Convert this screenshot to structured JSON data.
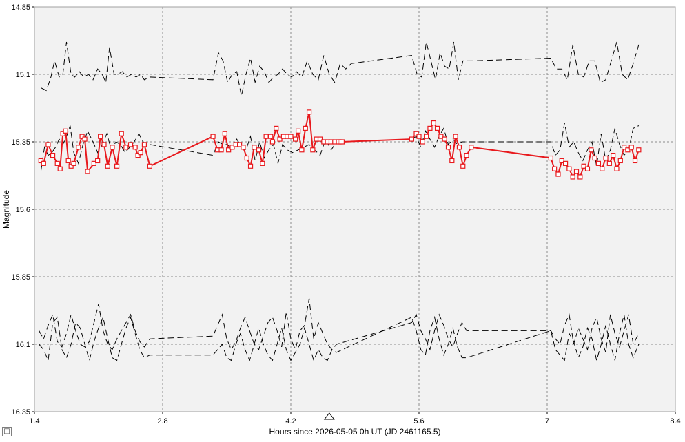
{
  "chart_data": {
    "type": "line",
    "title": "",
    "xlabel": "Hours since 2026-05-05 0h UT (JD 2461165.5)",
    "ylabel": "Magnitude",
    "xlim": [
      1.4,
      8.4
    ],
    "ylim": [
      14.85,
      16.35
    ],
    "y_inverted": true,
    "grid": true,
    "x_ticks": [
      "1.4",
      "2.8",
      "4.2",
      "5.6",
      "7",
      "8.4"
    ],
    "y_ticks": [
      "14.85",
      "15.1",
      "15.35",
      "15.6",
      "15.85",
      "16.1",
      "16.35"
    ],
    "marker_x": 4.62,
    "colors": {
      "target": "#e8191d",
      "comparison": "#000000",
      "plot_bg": "#f2f2f2",
      "grid": "#8c8c8c"
    },
    "series": [
      {
        "role": "target",
        "x": [
          1.47,
          1.5,
          1.55,
          1.6,
          1.65,
          1.68,
          1.71,
          1.74,
          1.77,
          1.8,
          1.83,
          1.88,
          1.92,
          1.95,
          1.98,
          2.05,
          2.09,
          2.12,
          2.16,
          2.2,
          2.25,
          2.3,
          2.35,
          2.4,
          2.45,
          2.5,
          2.53,
          2.56,
          2.6,
          2.66,
          3.35,
          3.4,
          3.44,
          3.48,
          3.52,
          3.56,
          3.6,
          3.64,
          3.68,
          3.72,
          3.76,
          3.8,
          3.85,
          3.89,
          3.93,
          3.98,
          4.0,
          4.04,
          4.08,
          4.12,
          4.16,
          4.2,
          4.25,
          4.28,
          4.32,
          4.36,
          4.4,
          4.44,
          4.48,
          4.52,
          4.56,
          4.6,
          4.64,
          4.68,
          4.72,
          4.74,
          4.76,
          5.52,
          5.57,
          5.6,
          5.64,
          5.68,
          5.72,
          5.76,
          5.8,
          5.84,
          5.88,
          5.92,
          5.96,
          6.0,
          6.04,
          6.08,
          6.12,
          6.17,
          7.04,
          7.08,
          7.12,
          7.16,
          7.2,
          7.24,
          7.28,
          7.32,
          7.36,
          7.4,
          7.44,
          7.48,
          7.52,
          7.56,
          7.6,
          7.64,
          7.68,
          7.72,
          7.76,
          7.8,
          7.84,
          7.88,
          7.92,
          7.96,
          8.0
        ],
        "y": [
          15.42,
          15.43,
          15.36,
          15.4,
          15.43,
          15.45,
          15.32,
          15.31,
          15.42,
          15.44,
          15.43,
          15.37,
          15.33,
          15.34,
          15.46,
          15.43,
          15.42,
          15.33,
          15.36,
          15.44,
          15.37,
          15.44,
          15.32,
          15.37,
          15.36,
          15.37,
          15.4,
          15.39,
          15.36,
          15.44,
          15.33,
          15.38,
          15.38,
          15.32,
          15.38,
          15.37,
          15.36,
          15.36,
          15.37,
          15.41,
          15.44,
          15.37,
          15.38,
          15.43,
          15.33,
          15.33,
          15.35,
          15.3,
          15.34,
          15.33,
          15.33,
          15.33,
          15.34,
          15.31,
          15.38,
          15.3,
          15.24,
          15.38,
          15.34,
          15.34,
          15.35,
          15.35,
          15.35,
          15.35,
          15.35,
          15.35,
          15.35,
          15.34,
          15.32,
          15.33,
          15.35,
          15.33,
          15.3,
          15.28,
          15.3,
          15.33,
          15.34,
          15.37,
          15.42,
          15.33,
          15.37,
          15.44,
          15.4,
          15.37,
          15.41,
          15.45,
          15.47,
          15.42,
          15.43,
          15.45,
          15.48,
          15.46,
          15.48,
          15.44,
          15.45,
          15.38,
          15.41,
          15.43,
          15.45,
          15.41,
          15.43,
          15.4,
          15.45,
          15.42,
          15.37,
          15.38,
          15.37,
          15.42,
          15.38
        ]
      },
      {
        "role": "comparison-1",
        "x": [
          1.47,
          1.53,
          1.58,
          1.62,
          1.67,
          1.71,
          1.75,
          1.8,
          1.84,
          1.89,
          1.94,
          1.99,
          2.04,
          2.09,
          2.14,
          2.18,
          2.22,
          2.27,
          2.31,
          2.36,
          2.41,
          2.46,
          2.51,
          2.56,
          2.6,
          2.66,
          3.35,
          3.41,
          3.46,
          3.51,
          3.56,
          3.61,
          3.66,
          3.71,
          3.76,
          3.81,
          3.86,
          3.91,
          3.96,
          4.01,
          4.06,
          4.11,
          4.16,
          4.21,
          4.26,
          4.32,
          4.38,
          4.44,
          4.5,
          4.56,
          4.62,
          4.68,
          4.74,
          4.8,
          4.86,
          5.52,
          5.58,
          5.63,
          5.68,
          5.73,
          5.78,
          5.83,
          5.88,
          5.93,
          5.98,
          6.03,
          6.08,
          6.13,
          6.18,
          7.04,
          7.1,
          7.16,
          7.22,
          7.28,
          7.34,
          7.4,
          7.46,
          7.52,
          7.58,
          7.64,
          7.7,
          7.76,
          7.82,
          7.88,
          7.94,
          8.0
        ],
        "y": [
          15.15,
          15.16,
          15.11,
          15.05,
          15.11,
          15.1,
          14.98,
          15.1,
          15.11,
          15.09,
          15.11,
          15.1,
          15.12,
          15.08,
          15.1,
          15.13,
          15.0,
          15.1,
          15.1,
          15.09,
          15.11,
          15.1,
          15.11,
          15.1,
          15.12,
          15.11,
          15.12,
          15.02,
          15.05,
          15.13,
          15.1,
          15.09,
          15.18,
          15.1,
          15.04,
          15.13,
          15.07,
          15.09,
          15.13,
          15.11,
          15.1,
          15.08,
          15.1,
          15.11,
          15.09,
          15.11,
          15.05,
          15.1,
          15.12,
          15.03,
          15.1,
          15.13,
          15.06,
          15.08,
          15.06,
          15.03,
          15.1,
          15.11,
          14.98,
          15.05,
          15.12,
          15.02,
          15.07,
          15.08,
          14.98,
          15.12,
          15.05,
          15.05,
          15.05,
          15.04,
          15.08,
          15.08,
          15.12,
          14.99,
          15.1,
          15.11,
          15.05,
          15.05,
          15.13,
          15.12,
          15.05,
          14.98,
          15.1,
          15.12,
          15.06,
          14.99
        ],
        "style": "dashed"
      },
      {
        "role": "comparison-2",
        "x": [
          1.47,
          1.51,
          1.55,
          1.59,
          1.63,
          1.67,
          1.71,
          1.75,
          1.79,
          1.83,
          1.88,
          1.93,
          1.98,
          2.04,
          2.09,
          2.14,
          2.19,
          2.24,
          2.29,
          2.34,
          2.39,
          2.44,
          2.49,
          2.54,
          2.6,
          2.66,
          3.35,
          3.41,
          3.46,
          3.51,
          3.56,
          3.61,
          3.66,
          3.71,
          3.76,
          3.81,
          3.86,
          3.91,
          3.96,
          4.01,
          4.06,
          4.11,
          4.16,
          4.22,
          4.28,
          4.34,
          4.4,
          4.46,
          4.52,
          4.58,
          4.64,
          4.7,
          4.76,
          5.52,
          5.57,
          5.62,
          5.67,
          5.72,
          5.77,
          5.82,
          5.87,
          5.92,
          5.97,
          6.02,
          6.07,
          6.12,
          7.04,
          7.09,
          7.14,
          7.19,
          7.24,
          7.29,
          7.34,
          7.39,
          7.44,
          7.49,
          7.54,
          7.59,
          7.64,
          7.69,
          7.74,
          7.79,
          7.84,
          7.89,
          7.94,
          8.0
        ],
        "y": [
          15.46,
          15.37,
          15.4,
          15.39,
          15.37,
          15.34,
          15.36,
          15.33,
          15.29,
          15.39,
          15.43,
          15.36,
          15.31,
          15.35,
          15.39,
          15.36,
          15.32,
          15.38,
          15.35,
          15.36,
          15.39,
          15.37,
          15.35,
          15.32,
          15.36,
          15.36,
          15.4,
          15.35,
          15.36,
          15.36,
          15.38,
          15.34,
          15.37,
          15.38,
          15.33,
          15.42,
          15.35,
          15.41,
          15.38,
          15.36,
          15.43,
          15.36,
          15.38,
          15.39,
          15.38,
          15.37,
          15.36,
          15.38,
          15.4,
          15.34,
          15.38,
          15.35,
          15.35,
          15.34,
          15.33,
          15.37,
          15.31,
          15.34,
          15.37,
          15.33,
          15.3,
          15.36,
          15.34,
          15.36,
          15.35,
          15.35,
          15.35,
          15.4,
          15.38,
          15.28,
          15.37,
          15.35,
          15.39,
          15.42,
          15.38,
          15.35,
          15.44,
          15.32,
          15.42,
          15.38,
          15.3,
          15.36,
          15.4,
          15.38,
          15.3,
          15.29
        ],
        "style": "dashed"
      },
      {
        "role": "comparison-3",
        "x": [
          1.45,
          1.5,
          1.55,
          1.6,
          1.65,
          1.7,
          1.75,
          1.8,
          1.85,
          1.9,
          1.95,
          2.0,
          2.05,
          2.1,
          2.15,
          2.2,
          2.25,
          2.3,
          2.35,
          2.4,
          2.45,
          2.5,
          2.55,
          2.6,
          2.66,
          3.35,
          3.4,
          3.45,
          3.5,
          3.55,
          3.6,
          3.65,
          3.7,
          3.75,
          3.8,
          3.85,
          3.9,
          3.95,
          4.0,
          4.05,
          4.1,
          4.15,
          4.2,
          4.25,
          4.3,
          4.35,
          4.4,
          4.45,
          4.5,
          4.55,
          4.6,
          4.65,
          4.7,
          5.52,
          5.57,
          5.62,
          5.67,
          5.72,
          5.77,
          5.82,
          5.87,
          5.92,
          5.97,
          6.02,
          6.07,
          6.12,
          7.04,
          7.09,
          7.14,
          7.19,
          7.24,
          7.29,
          7.34,
          7.39,
          7.44,
          7.49,
          7.54,
          7.59,
          7.64,
          7.69,
          7.74,
          7.79,
          7.84,
          7.89,
          7.94,
          8.0
        ],
        "y": [
          16.05,
          16.08,
          16.03,
          15.99,
          16.09,
          16.11,
          16.06,
          15.99,
          16.05,
          16.1,
          16.11,
          16.09,
          16.02,
          15.95,
          16.05,
          16.1,
          16.12,
          16.08,
          16.05,
          16.02,
          15.99,
          16.05,
          16.09,
          16.11,
          16.08,
          16.07,
          16.03,
          15.99,
          16.08,
          16.12,
          16.09,
          16.04,
          16.0,
          16.05,
          16.1,
          16.12,
          16.07,
          16.02,
          16.0,
          16.05,
          16.11,
          15.98,
          16.08,
          16.12,
          16.05,
          16.03,
          15.93,
          16.08,
          16.02,
          16.06,
          16.1,
          16.12,
          16.1,
          16.02,
          15.99,
          16.05,
          16.08,
          16.12,
          16.05,
          15.99,
          16.03,
          16.08,
          16.11,
          16.06,
          16.02,
          16.05,
          16.05,
          16.08,
          16.1,
          16.03,
          15.99,
          16.1,
          16.04,
          16.08,
          16.12,
          16.04,
          16.0,
          16.08,
          16.13,
          15.99,
          16.06,
          16.11,
          16.05,
          15.99,
          16.1,
          16.06
        ],
        "style": "dashed"
      },
      {
        "role": "comparison-4",
        "x": [
          1.45,
          1.5,
          1.55,
          1.6,
          1.65,
          1.7,
          1.75,
          1.8,
          1.85,
          1.9,
          1.95,
          2.0,
          2.05,
          2.1,
          2.15,
          2.2,
          2.25,
          2.3,
          2.35,
          2.4,
          2.45,
          2.5,
          2.55,
          2.6,
          2.66,
          3.35,
          3.4,
          3.45,
          3.5,
          3.55,
          3.6,
          3.65,
          3.7,
          3.75,
          3.8,
          3.85,
          3.9,
          3.95,
          4.0,
          4.05,
          4.1,
          4.15,
          4.2,
          4.25,
          4.3,
          4.35,
          4.4,
          4.45,
          4.5,
          4.55,
          4.6,
          4.65,
          4.7,
          5.52,
          5.57,
          5.62,
          5.67,
          5.72,
          5.77,
          5.82,
          5.87,
          5.92,
          5.97,
          6.02,
          6.07,
          6.12,
          7.04,
          7.09,
          7.14,
          7.19,
          7.24,
          7.29,
          7.34,
          7.39,
          7.44,
          7.49,
          7.54,
          7.59,
          7.64,
          7.69,
          7.74,
          7.79,
          7.84,
          7.89,
          7.94,
          8.0
        ],
        "y": [
          16.1,
          16.12,
          16.16,
          16.02,
          16.0,
          16.12,
          16.15,
          16.1,
          16.02,
          16.04,
          16.1,
          16.16,
          16.09,
          16.04,
          16.0,
          16.08,
          16.15,
          16.16,
          16.1,
          16.04,
          16.0,
          16.06,
          16.12,
          16.15,
          16.14,
          16.14,
          16.12,
          16.1,
          16.15,
          16.16,
          16.1,
          16.06,
          16.12,
          16.16,
          16.1,
          16.04,
          16.1,
          16.14,
          16.16,
          16.1,
          16.04,
          16.12,
          16.16,
          16.13,
          16.1,
          16.04,
          16.1,
          16.16,
          16.12,
          16.15,
          16.16,
          16.12,
          16.13,
          16.0,
          16.05,
          16.12,
          16.14,
          16.05,
          16.0,
          16.08,
          16.14,
          16.1,
          16.04,
          16.11,
          16.15,
          16.15,
          16.05,
          16.12,
          16.14,
          16.16,
          16.06,
          16.09,
          16.15,
          16.11,
          16.04,
          16.08,
          16.16,
          16.1,
          16.03,
          16.1,
          16.16,
          16.06,
          15.99,
          16.1,
          16.15,
          16.1
        ],
        "style": "dashed"
      }
    ]
  }
}
